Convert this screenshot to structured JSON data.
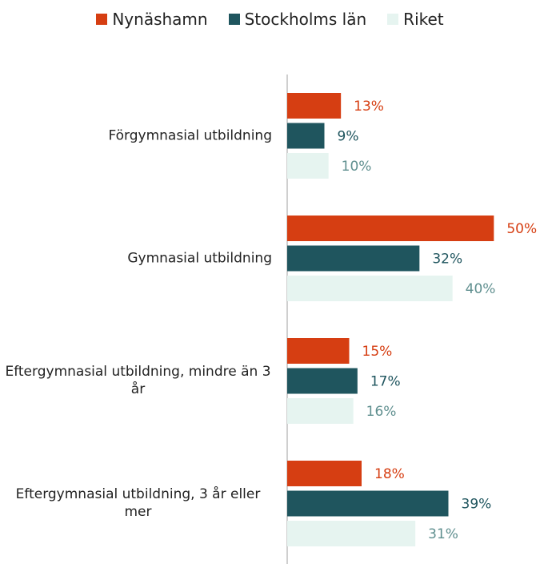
{
  "chart_data": {
    "type": "bar",
    "orientation": "horizontal",
    "categories": [
      "Förgymnasial utbildning",
      "Gymnasial utbildning",
      "Eftergymnasial utbildning, mindre än 3 år",
      "Eftergymnasial utbildning, 3 år eller mer"
    ],
    "series": [
      {
        "name": "Nynäshamn",
        "color": "#d63e12",
        "label_color": "#d63e12",
        "values": [
          13,
          50,
          15,
          18
        ],
        "value_labels": [
          "13%",
          "50%",
          "15%",
          "18%"
        ]
      },
      {
        "name": "Stockholms län",
        "color": "#1f555e",
        "label_color": "#1f555e",
        "values": [
          9,
          32,
          17,
          39
        ],
        "value_labels": [
          "9%",
          "32%",
          "17%",
          "39%"
        ]
      },
      {
        "name": "Riket",
        "color": "#e6f4f0",
        "label_color": "#5f8f8f",
        "values": [
          10,
          40,
          16,
          31
        ],
        "value_labels": [
          "10%",
          "40%",
          "16%",
          "31%"
        ]
      }
    ],
    "xlim": [
      0,
      60
    ],
    "legend": "top"
  }
}
